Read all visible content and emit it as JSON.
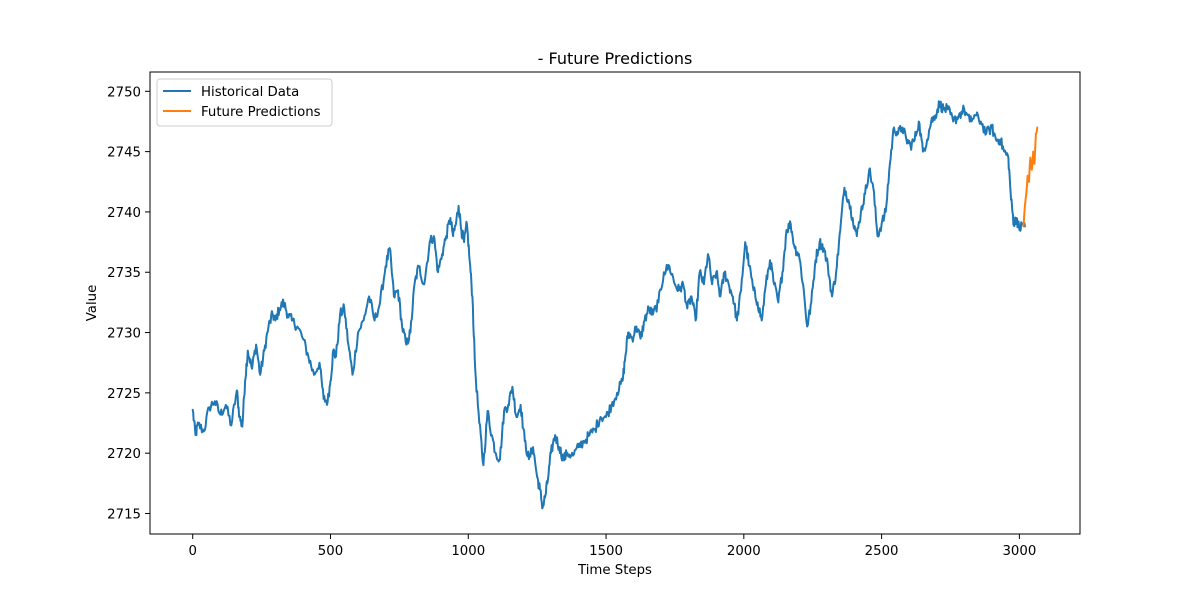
{
  "chart_data": {
    "type": "line",
    "title": "- Future Predictions",
    "xlabel": "Time Steps",
    "ylabel": "Value",
    "xlim": [
      -155,
      3220
    ],
    "ylim": [
      2713.3,
      2751.6
    ],
    "x_ticks": [
      0,
      500,
      1000,
      1500,
      2000,
      2500,
      3000
    ],
    "y_ticks": [
      2715,
      2720,
      2725,
      2730,
      2735,
      2740,
      2745,
      2750
    ],
    "grid": false,
    "legend_position": "top-left",
    "series": [
      {
        "name": "Historical Data",
        "color": "#1f77b4",
        "x": [
          0,
          10,
          20,
          40,
          60,
          80,
          100,
          120,
          140,
          160,
          170,
          180,
          190,
          200,
          215,
          230,
          245,
          260,
          275,
          290,
          300,
          315,
          330,
          345,
          360,
          380,
          400,
          420,
          440,
          460,
          475,
          490,
          500,
          510,
          520,
          535,
          550,
          565,
          580,
          600,
          620,
          640,
          660,
          680,
          700,
          715,
          730,
          745,
          760,
          775,
          790,
          805,
          820,
          840,
          860,
          875,
          890,
          905,
          920,
          935,
          945,
          955,
          965,
          975,
          985,
          995,
          1005,
          1015,
          1025,
          1040,
          1055,
          1070,
          1085,
          1100,
          1115,
          1130,
          1145,
          1160,
          1175,
          1190,
          1205,
          1220,
          1235,
          1250,
          1260,
          1270,
          1280,
          1290,
          1300,
          1315,
          1330,
          1345,
          1360,
          1380,
          1400,
          1420,
          1440,
          1460,
          1480,
          1500,
          1520,
          1540,
          1560,
          1570,
          1580,
          1595,
          1610,
          1625,
          1640,
          1655,
          1670,
          1690,
          1710,
          1730,
          1750,
          1765,
          1780,
          1795,
          1810,
          1825,
          1840,
          1855,
          1870,
          1885,
          1900,
          1915,
          1930,
          1945,
          1960,
          1975,
          1990,
          2005,
          2020,
          2035,
          2050,
          2065,
          2080,
          2095,
          2110,
          2125,
          2140,
          2155,
          2170,
          2185,
          2200,
          2215,
          2230,
          2245,
          2260,
          2275,
          2290,
          2305,
          2320,
          2335,
          2350,
          2365,
          2380,
          2395,
          2410,
          2425,
          2440,
          2455,
          2470,
          2485,
          2500,
          2515,
          2530,
          2545,
          2560,
          2575,
          2590,
          2605,
          2620,
          2635,
          2650,
          2665,
          2680,
          2695,
          2710,
          2725,
          2740,
          2760,
          2780,
          2800,
          2820,
          2840,
          2860,
          2880,
          2900,
          2915,
          2930,
          2945,
          2960,
          2970,
          2980,
          2990,
          3000,
          3010,
          3020
        ],
        "y": [
          2723.6,
          2721.5,
          2722.4,
          2721.8,
          2723.8,
          2724.3,
          2723.2,
          2724.0,
          2722.3,
          2725.2,
          2723.0,
          2722.2,
          2726.0,
          2728.5,
          2727.0,
          2729.0,
          2726.5,
          2728.5,
          2730.5,
          2731.5,
          2731.0,
          2732.0,
          2732.5,
          2731.5,
          2731.0,
          2730.5,
          2729.5,
          2728.0,
          2726.5,
          2727.5,
          2724.5,
          2724.3,
          2726.0,
          2728.5,
          2728.0,
          2731.5,
          2732.0,
          2729.0,
          2726.5,
          2730.0,
          2731.0,
          2733.0,
          2731.0,
          2732.5,
          2735.5,
          2737.0,
          2733.0,
          2733.5,
          2730.5,
          2729.0,
          2730.0,
          2734.0,
          2735.5,
          2734.0,
          2737.5,
          2738.0,
          2735.0,
          2736.5,
          2738.0,
          2739.5,
          2738.0,
          2739.0,
          2740.5,
          2738.5,
          2737.5,
          2739.0,
          2736.0,
          2733.0,
          2727.0,
          2722.5,
          2719.0,
          2723.5,
          2721.5,
          2720.0,
          2719.5,
          2723.5,
          2724.0,
          2725.5,
          2723.0,
          2724.0,
          2721.0,
          2719.5,
          2720.5,
          2718.0,
          2717.0,
          2715.5,
          2716.5,
          2718.0,
          2720.0,
          2721.5,
          2720.5,
          2719.5,
          2720.0,
          2719.8,
          2720.5,
          2721.0,
          2721.5,
          2722.0,
          2723.0,
          2723.0,
          2724.0,
          2725.0,
          2726.0,
          2728.0,
          2730.0,
          2729.5,
          2730.5,
          2729.5,
          2731.0,
          2732.0,
          2731.5,
          2732.5,
          2735.0,
          2735.5,
          2734.0,
          2733.5,
          2734.0,
          2732.0,
          2733.0,
          2731.0,
          2735.0,
          2734.0,
          2736.5,
          2734.0,
          2735.0,
          2733.0,
          2735.0,
          2734.0,
          2733.0,
          2731.0,
          2733.5,
          2737.5,
          2735.5,
          2733.5,
          2732.5,
          2731.0,
          2734.0,
          2736.0,
          2734.0,
          2732.5,
          2735.0,
          2738.5,
          2739.0,
          2737.0,
          2736.5,
          2734.0,
          2730.5,
          2732.5,
          2736.0,
          2737.5,
          2737.0,
          2735.5,
          2733.0,
          2735.0,
          2738.5,
          2742.0,
          2741.0,
          2739.5,
          2738.0,
          2740.0,
          2741.5,
          2743.5,
          2742.0,
          2738.0,
          2739.0,
          2740.0,
          2744.0,
          2747.0,
          2746.5,
          2747.0,
          2746.0,
          2745.5,
          2746.0,
          2747.5,
          2745.0,
          2746.0,
          2747.5,
          2748.0,
          2749.0,
          2748.5,
          2748.5,
          2747.5,
          2748.0,
          2748.5,
          2747.5,
          2748.0,
          2747.5,
          2746.5,
          2747.0,
          2746.0,
          2746.0,
          2745.0,
          2744.5,
          2741.0,
          2739.0,
          2739.5,
          2738.5,
          2739.0,
          2738.8
        ]
      },
      {
        "name": "Future Predictions",
        "color": "#ff7f0e",
        "x": [
          3015,
          3020,
          3025,
          3030,
          3035,
          3040,
          3045,
          3050,
          3055,
          3060,
          3065
        ],
        "y": [
          2738.8,
          2740.5,
          2741.5,
          2743.0,
          2742.5,
          2744.5,
          2743.5,
          2745.0,
          2744.0,
          2746.5,
          2747.0
        ]
      }
    ]
  }
}
